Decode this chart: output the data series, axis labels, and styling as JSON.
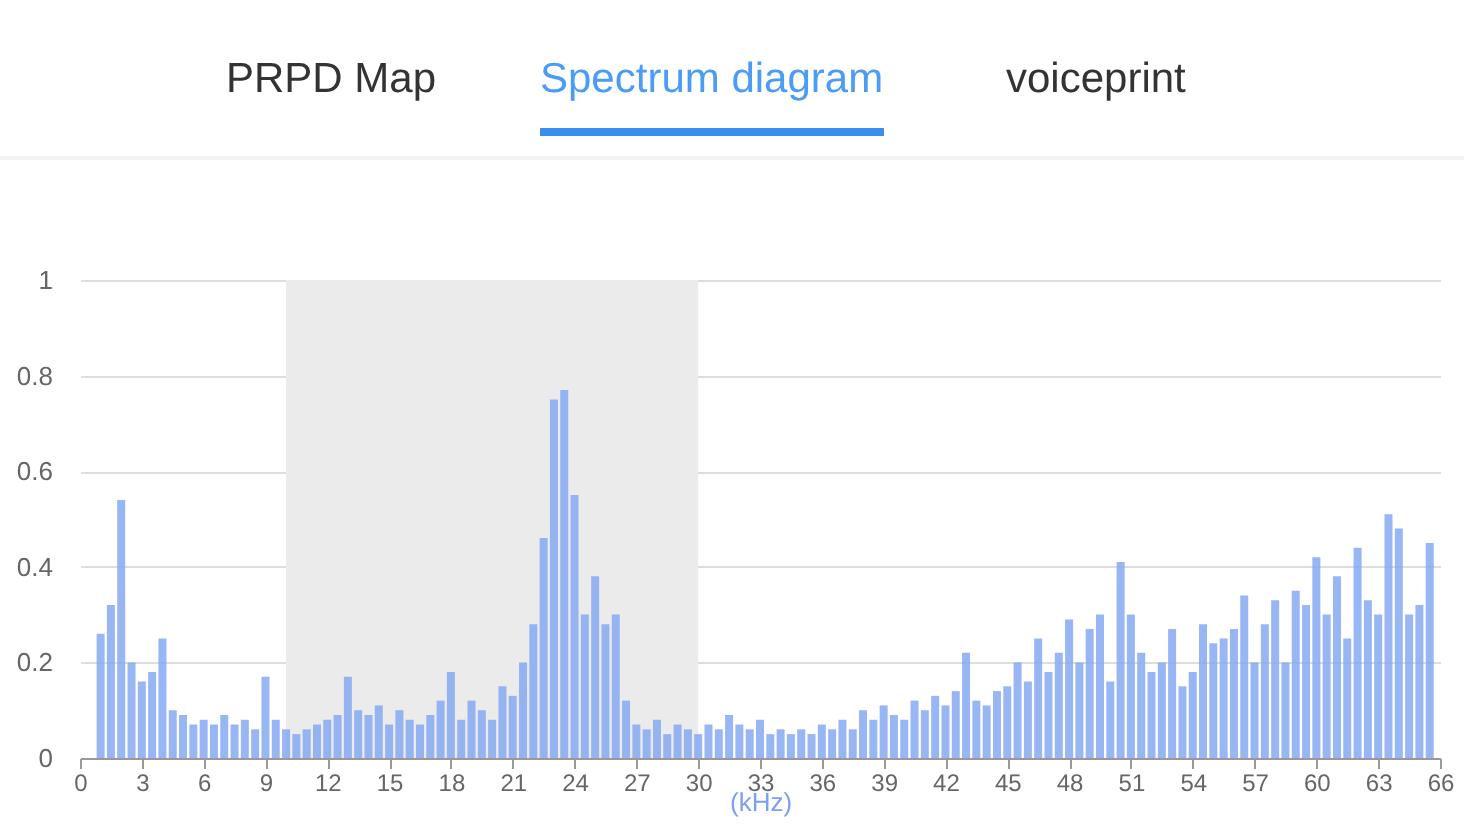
{
  "chart_data": {
    "type": "bar",
    "annotations": [
      "PRPD Map",
      "Spectrum diagram",
      "voiceprint"
    ],
    "xlabel": "(kHz)",
    "x": [
      1.0,
      1.5,
      2.0,
      2.5,
      3.0,
      3.5,
      4.0,
      4.5,
      5.0,
      5.5,
      6.0,
      6.5,
      7.0,
      7.5,
      8.0,
      8.5,
      9.0,
      9.5,
      10.0,
      10.5,
      11.0,
      11.5,
      12.0,
      12.5,
      13.0,
      13.5,
      14.0,
      14.5,
      15.0,
      15.5,
      16.0,
      16.5,
      17.0,
      17.5,
      18.0,
      18.5,
      19.0,
      19.5,
      20.0,
      20.5,
      21.0,
      21.5,
      22.0,
      22.5,
      23.0,
      23.5,
      24.0,
      24.5,
      25.0,
      25.5,
      26.0,
      26.5,
      27.0,
      27.5,
      28.0,
      28.5,
      29.0,
      29.5,
      30.0,
      30.5,
      31.0,
      31.5,
      32.0,
      32.5,
      33.0,
      33.5,
      34.0,
      34.5,
      35.0,
      35.5,
      36.0,
      36.5,
      37.0,
      37.5,
      38.0,
      38.5,
      39.0,
      39.5,
      40.0,
      40.5,
      41.0,
      41.5,
      42.0,
      42.5,
      43.0,
      43.5,
      44.0,
      44.5,
      45.0,
      45.5,
      46.0,
      46.5,
      47.0,
      47.5,
      48.0,
      48.5,
      49.0,
      49.5,
      50.0,
      50.5,
      51.0,
      51.5,
      52.0,
      52.5,
      53.0,
      53.5,
      54.0,
      54.5,
      55.0,
      55.5,
      56.0,
      56.5,
      57.0,
      57.5,
      58.0,
      58.5,
      59.0,
      59.5,
      60.0,
      60.5,
      61.0,
      61.5,
      62.0,
      62.5,
      63.0,
      63.5,
      64.0,
      64.5,
      65.0,
      65.5
    ],
    "values": [
      0.26,
      0.32,
      0.54,
      0.2,
      0.16,
      0.18,
      0.25,
      0.1,
      0.09,
      0.07,
      0.08,
      0.07,
      0.09,
      0.07,
      0.08,
      0.06,
      0.17,
      0.08,
      0.06,
      0.05,
      0.06,
      0.07,
      0.08,
      0.09,
      0.17,
      0.1,
      0.09,
      0.11,
      0.07,
      0.1,
      0.08,
      0.07,
      0.09,
      0.12,
      0.18,
      0.08,
      0.12,
      0.1,
      0.08,
      0.15,
      0.13,
      0.2,
      0.28,
      0.46,
      0.75,
      0.77,
      0.55,
      0.3,
      0.38,
      0.28,
      0.3,
      0.12,
      0.07,
      0.06,
      0.08,
      0.05,
      0.07,
      0.06,
      0.05,
      0.07,
      0.06,
      0.09,
      0.07,
      0.06,
      0.08,
      0.05,
      0.06,
      0.05,
      0.06,
      0.05,
      0.07,
      0.06,
      0.08,
      0.06,
      0.1,
      0.08,
      0.11,
      0.09,
      0.08,
      0.12,
      0.1,
      0.13,
      0.11,
      0.14,
      0.22,
      0.12,
      0.11,
      0.14,
      0.15,
      0.2,
      0.16,
      0.25,
      0.18,
      0.22,
      0.29,
      0.2,
      0.27,
      0.3,
      0.16,
      0.41,
      0.3,
      0.22,
      0.18,
      0.2,
      0.27,
      0.15,
      0.18,
      0.28,
      0.24,
      0.25,
      0.27,
      0.34,
      0.2,
      0.28,
      0.33,
      0.2,
      0.35,
      0.32,
      0.42,
      0.3,
      0.38,
      0.25,
      0.44,
      0.33,
      0.3,
      0.51,
      0.48,
      0.3,
      0.32,
      0.45
    ],
    "color": "#86a8f2",
    "xlim": [
      0,
      66
    ],
    "xticks": [
      0,
      3,
      6,
      9,
      12,
      15,
      18,
      21,
      24,
      27,
      30,
      33,
      36,
      39,
      42,
      45,
      48,
      51,
      54,
      57,
      60,
      63,
      66
    ],
    "ylim": [
      0,
      1
    ],
    "yticks": [
      0,
      0.2,
      0.4,
      0.6,
      0.8,
      1
    ],
    "grid": "y",
    "bands": [
      {
        "axis": "x",
        "from": 10,
        "to": 30,
        "color": "#ebebeb"
      }
    ]
  }
}
